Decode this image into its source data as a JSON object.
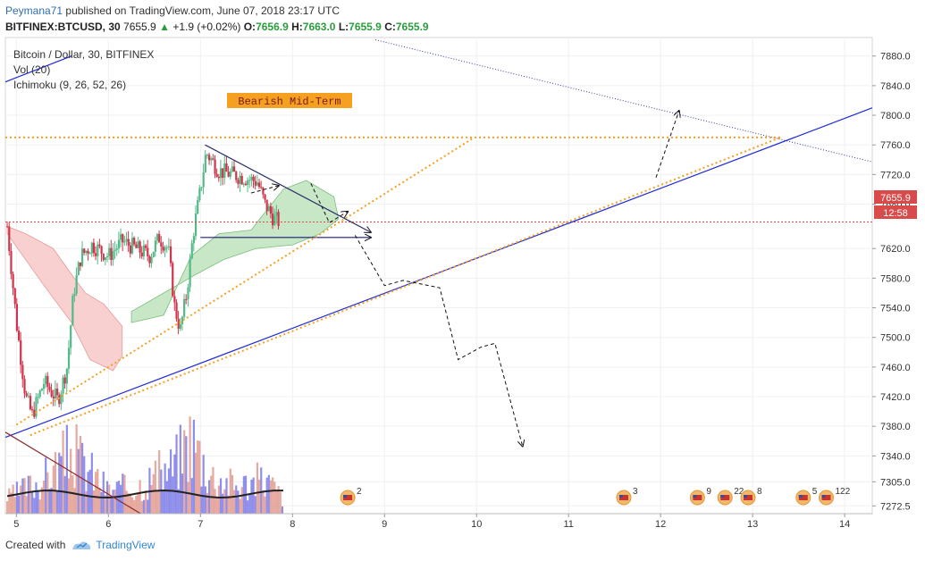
{
  "header": {
    "author": "Peymana71",
    "published_text": "published on TradingView.com, June 07, 2018 23:17 UTC",
    "symbol_line": {
      "symbol": "BITFINEX:BTCUSD, 30",
      "price": "7655.9",
      "change": "+1.9 (+0.02%)",
      "o_label": "O:",
      "o": "7656.9",
      "h_label": "H:",
      "h": "7663.0",
      "l_label": "L:",
      "l": "7655.9",
      "c_label": "C:",
      "c": "7655.9"
    }
  },
  "legend": {
    "title": "Bitcoin / Dollar, 30, BITFINEX",
    "vol": "Vol (20)",
    "ichimoku": "Ichimoku (9, 26, 52, 26)"
  },
  "annotation": {
    "text": "Bearish Mid-Term"
  },
  "price_tag": {
    "price": "7655.9",
    "countdown": "12:58"
  },
  "event_labels": [
    "2",
    "3",
    "9",
    "22",
    "8",
    "5",
    "122"
  ],
  "footer": {
    "created_with": "Created with",
    "brand": "TradingView"
  },
  "colors": {
    "up": "#53b987",
    "down": "#d0334a",
    "trend": "#1f2bd6",
    "fib": "#f5a020",
    "cloud_up": "#c7e7c7",
    "cloud_down": "#f8d0d0",
    "annotation_bg": "#f5a020",
    "annotation_text": "#7a1a1a"
  },
  "chart_data": {
    "type": "candlestick",
    "y_axis": {
      "ticks": [
        7880,
        7840,
        7800,
        7760,
        7720,
        7680,
        7620,
        7580,
        7540,
        7500,
        7460,
        7420,
        7380,
        7340,
        7305,
        7272.5
      ],
      "range": [
        7262,
        7905
      ],
      "position": "right"
    },
    "x_axis": {
      "ticks": [
        "5",
        "6",
        "7",
        "8",
        "9",
        "10",
        "11",
        "12",
        "13",
        "14"
      ],
      "range": [
        4.88,
        14.3
      ]
    },
    "last_price": 7655.9,
    "grid": true,
    "candle_path_points": [
      [
        4.9,
        7650
      ],
      [
        5.0,
        7520
      ],
      [
        5.1,
        7420
      ],
      [
        5.17,
        7395
      ],
      [
        5.3,
        7440
      ],
      [
        5.45,
        7415
      ],
      [
        5.55,
        7460
      ],
      [
        5.62,
        7560
      ],
      [
        5.7,
        7610
      ],
      [
        5.82,
        7625
      ],
      [
        6.0,
        7610
      ],
      [
        6.15,
        7630
      ],
      [
        6.3,
        7620
      ],
      [
        6.45,
        7610
      ],
      [
        6.55,
        7635
      ],
      [
        6.65,
        7620
      ],
      [
        6.72,
        7540
      ],
      [
        6.78,
        7510
      ],
      [
        6.85,
        7560
      ],
      [
        6.92,
        7640
      ],
      [
        7.0,
        7700
      ],
      [
        7.06,
        7750
      ],
      [
        7.2,
        7725
      ],
      [
        7.35,
        7720
      ],
      [
        7.5,
        7715
      ],
      [
        7.62,
        7710
      ],
      [
        7.7,
        7680
      ],
      [
        7.8,
        7660
      ],
      [
        7.86,
        7656
      ]
    ],
    "volume_envelope": [
      [
        4.9,
        0.2
      ],
      [
        5.3,
        0.45
      ],
      [
        5.6,
        0.8
      ],
      [
        5.8,
        0.55
      ],
      [
        6.0,
        0.3
      ],
      [
        6.3,
        0.35
      ],
      [
        6.7,
        0.6
      ],
      [
        6.9,
        1.0
      ],
      [
        7.1,
        0.5
      ],
      [
        7.4,
        0.35
      ],
      [
        7.7,
        0.45
      ],
      [
        7.9,
        0.2
      ]
    ],
    "annotations": [
      {
        "type": "trendline",
        "points": [
          [
            4.88,
            7365
          ],
          [
            14.3,
            7810
          ]
        ]
      },
      {
        "type": "trendline",
        "points": [
          [
            4.88,
            7845
          ],
          [
            5.6,
            7880
          ]
        ]
      },
      {
        "type": "trendline",
        "points": [
          [
            7.05,
            7760
          ],
          [
            8.85,
            7642
          ]
        ]
      },
      {
        "type": "trendline",
        "points": [
          [
            7.0,
            7635
          ],
          [
            8.85,
            7635
          ]
        ]
      },
      {
        "type": "trendline",
        "points": [
          [
            4.88,
            7372
          ],
          [
            6.35,
            7262
          ]
        ]
      },
      {
        "type": "dotted",
        "points": [
          [
            8.9,
            7902
          ],
          [
            14.3,
            7737
          ]
        ]
      },
      {
        "type": "fib",
        "points": [
          [
            4.88,
            7770
          ],
          [
            13.3,
            7770
          ]
        ]
      },
      {
        "type": "fib",
        "points": [
          [
            5.15,
            7368
          ],
          [
            13.3,
            7770
          ]
        ]
      },
      {
        "type": "fib",
        "points": [
          [
            5.0,
            7382
          ],
          [
            9.95,
            7768
          ]
        ]
      },
      {
        "type": "forecast",
        "points": [
          [
            7.55,
            7695
          ],
          [
            7.85,
            7705
          ]
        ]
      },
      {
        "type": "forecast",
        "points": [
          [
            8.2,
            7708
          ],
          [
            8.4,
            7655
          ],
          [
            8.6,
            7670
          ]
        ]
      },
      {
        "type": "forecast",
        "points": [
          [
            8.68,
            7638
          ],
          [
            9.0,
            7570
          ],
          [
            9.2,
            7577
          ],
          [
            9.6,
            7567
          ],
          [
            9.8,
            7470
          ],
          [
            10.05,
            7487
          ],
          [
            10.2,
            7492
          ],
          [
            10.5,
            7353
          ]
        ]
      },
      {
        "type": "forecast",
        "points": [
          [
            11.95,
            7716
          ],
          [
            12.2,
            7806
          ]
        ]
      }
    ],
    "event_positions": [
      8.6,
      11.6,
      12.4,
      12.7,
      12.95,
      13.55,
      13.8
    ]
  }
}
